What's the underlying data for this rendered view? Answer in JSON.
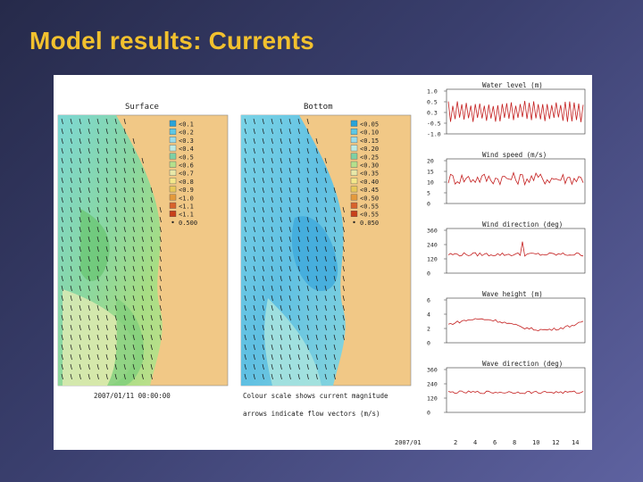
{
  "slide": {
    "title": "Model results: Currents"
  },
  "maps": {
    "surface": {
      "title": "Surface",
      "legend": [
        "<0.1",
        "<0.2",
        "<0.3",
        "<0.4",
        "<0.5",
        "<0.6",
        "<0.7",
        "<0.8",
        "<0.9",
        "<1.0",
        "<1.1",
        "<1.1",
        "0.500"
      ],
      "caption": "2007/01/11 00:00:00"
    },
    "bottom": {
      "title": "Bottom",
      "legend": [
        "<0.05",
        "<0.10",
        "<0.15",
        "<0.20",
        "<0.25",
        "<0.30",
        "<0.35",
        "<0.40",
        "<0.45",
        "<0.50",
        "<0.55",
        "<0.55",
        "0.050"
      ],
      "caption_line1": "Colour scale shows current magnitude",
      "caption_line2": "arrows indicate flow vectors (m/s)"
    },
    "legend_colors": [
      "#29a3d8",
      "#5ec8e4",
      "#9adcea",
      "#bdeae4",
      "#7fd0a4",
      "#b4e08c",
      "#e8e8a8",
      "#f4e78a",
      "#e8c85a",
      "#e49a3c",
      "#d8622c",
      "#c8401c"
    ],
    "land_color": "#f1c886"
  },
  "timeseries": {
    "panels": [
      {
        "title": "Water level (m)",
        "yticks": [
          "1.0",
          "0.5",
          "0.3",
          "-0.5",
          "-1.0"
        ]
      },
      {
        "title": "Wind speed (m/s)",
        "yticks": [
          "20",
          "15",
          "10",
          "5",
          "0"
        ]
      },
      {
        "title": "Wind direction (deg)",
        "yticks": [
          "360",
          "240",
          "120",
          "0"
        ]
      },
      {
        "title": "Wave height (m)",
        "yticks": [
          "6",
          "4",
          "2",
          "0"
        ]
      },
      {
        "title": "Wave direction (deg)",
        "yticks": [
          "360",
          "240",
          "120",
          "0"
        ]
      }
    ],
    "xlabel": "2007/01",
    "xticks": [
      "2",
      "4",
      "6",
      "8",
      "10",
      "12",
      "14"
    ],
    "line_color": "#c41f1f"
  }
}
